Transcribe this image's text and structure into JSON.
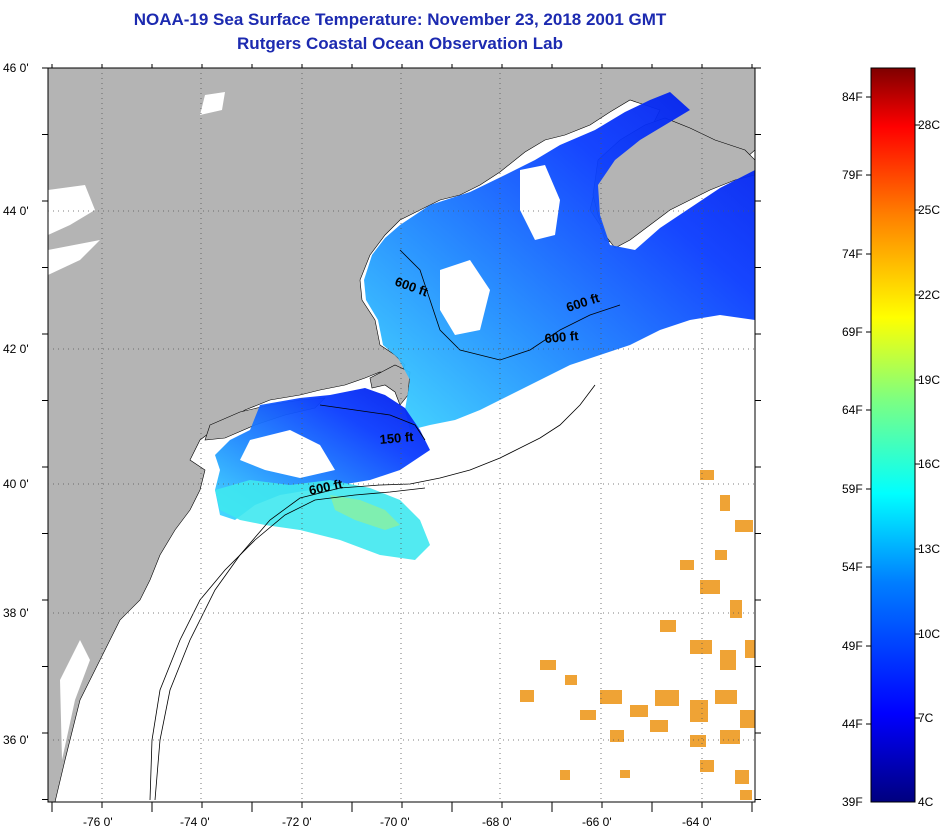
{
  "header": {
    "title_line1": "NOAA-19 Sea Surface Temperature:  November 23, 2018 2001 GMT",
    "title_line2": "Rutgers Coastal Ocean Observation Lab"
  },
  "map": {
    "lat_labels": [
      "46 0'",
      "44 0'",
      "42 0'",
      "40 0'",
      "38 0'",
      "36 0'"
    ],
    "lon_labels": [
      "-76 0'",
      "-74 0'",
      "-72 0'",
      "-70 0'",
      "-68 0'",
      "-66 0'",
      "-64 0'"
    ],
    "contour_labels": [
      "600 ft",
      "600 ft",
      "600 ft",
      "150 ft",
      "600 ft"
    ],
    "land_color": "#b4b4b4",
    "nodata_color": "#ffffff"
  },
  "colorbar": {
    "fahrenheit_labels": [
      "84F",
      "79F",
      "74F",
      "69F",
      "64F",
      "59F",
      "54F",
      "49F",
      "44F",
      "39F"
    ],
    "celsius_labels": [
      "28C",
      "25C",
      "22C",
      "19C",
      "16C",
      "13C",
      "10C",
      "7C",
      "4C"
    ],
    "scale_colors": [
      "#00007f",
      "#0000ff",
      "#007fff",
      "#00ffff",
      "#7fff7f",
      "#ffff00",
      "#ff7f00",
      "#ff0000",
      "#7f0000"
    ]
  }
}
